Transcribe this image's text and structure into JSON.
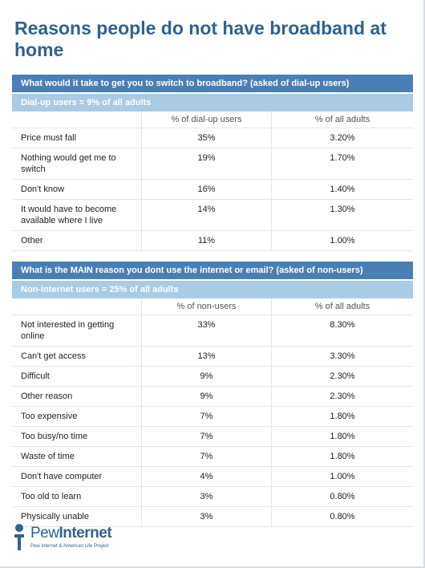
{
  "title": "Reasons people do not have broadband at home",
  "sections": [
    {
      "question": "What would it take to get you to switch to broadband? (asked of dial-up users)",
      "subheader": "Dial-up users = 9% of all adults",
      "columns": [
        "% of dial-up users",
        "% of all adults"
      ],
      "rows": [
        [
          "Price must fall",
          "35%",
          "3.20%"
        ],
        [
          "Nothing would get me to switch",
          "19%",
          "1.70%"
        ],
        [
          "Don't know",
          "16%",
          "1.40%"
        ],
        [
          "It would have to become available where I live",
          "14%",
          "1.30%"
        ],
        [
          "Other",
          "11%",
          "1.00%"
        ]
      ]
    },
    {
      "question": "What is the MAIN reason you dont use the internet or email? (asked of non-users)",
      "subheader": "Non-internet users = 25% of all adults",
      "columns": [
        "% of non-users",
        "% of all adults"
      ],
      "rows": [
        [
          "Not interested in getting online",
          "33%",
          "8.30%"
        ],
        [
          "Can't get access",
          "13%",
          "3.30%"
        ],
        [
          "Difficult",
          "9%",
          "2.30%"
        ],
        [
          "Other reason",
          "9%",
          "2.30%"
        ],
        [
          "Too expensive",
          "7%",
          "1.80%"
        ],
        [
          "Too busy/no time",
          "7%",
          "1.80%"
        ],
        [
          "Waste of time",
          "7%",
          "1.80%"
        ],
        [
          "Don't have computer",
          "4%",
          "1.00%"
        ],
        [
          "Too old to learn",
          "3%",
          "0.80%"
        ],
        [
          "Physically unable",
          "3%",
          "0.80%"
        ]
      ]
    }
  ],
  "footer": {
    "logo_name": "Pew",
    "logo_product": "Internet",
    "tagline": "Pew Internet & American Life Project"
  }
}
